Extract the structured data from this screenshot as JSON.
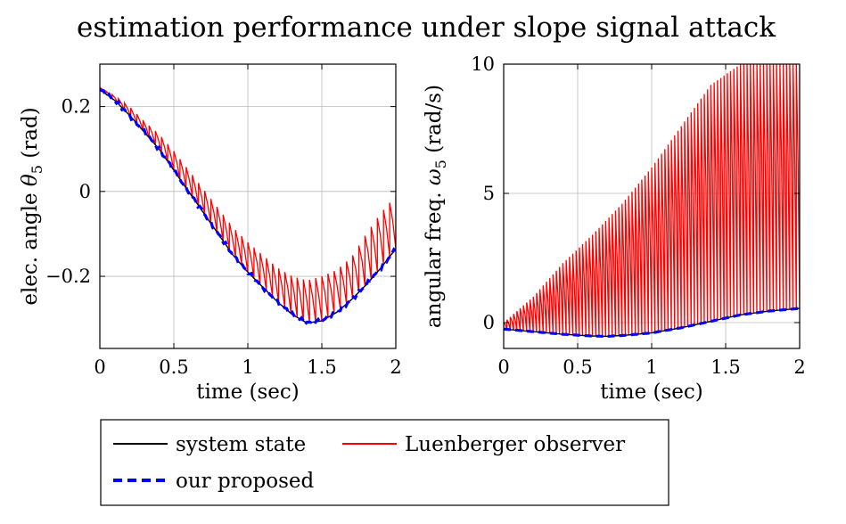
{
  "figure": {
    "title": "estimation performance under slope signal attack"
  },
  "legend": {
    "items": [
      {
        "label": "system state",
        "color": "#000000",
        "dash": "solid"
      },
      {
        "label": "Luenberger observer",
        "color": "#ff0000",
        "dash": "solid"
      },
      {
        "label": "our proposed",
        "color": "#0000ff",
        "dash": "dashed"
      }
    ]
  },
  "chart_data": [
    {
      "type": "line",
      "xlabel": "time (sec)",
      "ylabel_text": "elec. angle ",
      "ylabel_symbol": "θ",
      "ylabel_sub": "5",
      "ylabel_unit": " (rad)",
      "xlim": [
        0,
        2
      ],
      "ylim": [
        -0.37,
        0.3
      ],
      "xticks": [
        0,
        0.5,
        1,
        1.5,
        2
      ],
      "xtick_labels": [
        "0",
        "0.5",
        "1",
        "1.5",
        "2"
      ],
      "yticks": [
        -0.2,
        0,
        0.2
      ],
      "ytick_labels": [
        "−0.2",
        "0",
        "0.2"
      ],
      "grid": true,
      "series": [
        {
          "name": "system state",
          "color": "#000000",
          "x": [
            0,
            0.1,
            0.2,
            0.3,
            0.4,
            0.5,
            0.6,
            0.7,
            0.8,
            0.9,
            1.0,
            1.1,
            1.2,
            1.3,
            1.4,
            1.5,
            1.6,
            1.7,
            1.8,
            1.9,
            2.0
          ],
          "y": [
            0.24,
            0.215,
            0.18,
            0.14,
            0.1,
            0.05,
            0.0,
            -0.05,
            -0.1,
            -0.15,
            -0.19,
            -0.225,
            -0.26,
            -0.29,
            -0.31,
            -0.305,
            -0.285,
            -0.255,
            -0.22,
            -0.18,
            -0.135
          ]
        },
        {
          "name": "Luenberger observer",
          "color": "#ff0000",
          "x": [
            0,
            0.1,
            0.2,
            0.3,
            0.4,
            0.5,
            0.6,
            0.7,
            0.8,
            0.9,
            1.0,
            1.1,
            1.2,
            1.3,
            1.4,
            1.5,
            1.6,
            1.7,
            1.8,
            1.9,
            2.0
          ],
          "lower": [
            0.24,
            0.215,
            0.18,
            0.14,
            0.1,
            0.05,
            0.0,
            -0.05,
            -0.1,
            -0.15,
            -0.19,
            -0.225,
            -0.26,
            -0.29,
            -0.31,
            -0.305,
            -0.285,
            -0.255,
            -0.22,
            -0.18,
            -0.135
          ],
          "upper": [
            0.245,
            0.225,
            0.2,
            0.165,
            0.135,
            0.095,
            0.05,
            0.005,
            -0.04,
            -0.085,
            -0.12,
            -0.15,
            -0.18,
            -0.2,
            -0.21,
            -0.2,
            -0.185,
            -0.155,
            -0.1,
            -0.05,
            -0.01
          ]
        },
        {
          "name": "our proposed",
          "color": "#0000ff",
          "x": [
            0,
            0.1,
            0.2,
            0.3,
            0.4,
            0.5,
            0.6,
            0.7,
            0.8,
            0.9,
            1.0,
            1.1,
            1.2,
            1.3,
            1.4,
            1.5,
            1.6,
            1.7,
            1.8,
            1.9,
            2.0
          ],
          "y": [
            0.24,
            0.215,
            0.18,
            0.14,
            0.1,
            0.05,
            0.0,
            -0.05,
            -0.1,
            -0.15,
            -0.19,
            -0.225,
            -0.26,
            -0.29,
            -0.31,
            -0.305,
            -0.285,
            -0.255,
            -0.22,
            -0.18,
            -0.135
          ]
        }
      ]
    },
    {
      "type": "line",
      "xlabel": "time (sec)",
      "ylabel_text": "angular freq. ",
      "ylabel_symbol": "ω",
      "ylabel_sub": "5",
      "ylabel_unit": " (rad/s)",
      "xlim": [
        0,
        2
      ],
      "ylim": [
        -1,
        10
      ],
      "xticks": [
        0,
        0.5,
        1,
        1.5,
        2
      ],
      "xtick_labels": [
        "0",
        "0.5",
        "1",
        "1.5",
        "2"
      ],
      "yticks": [
        0,
        5,
        10
      ],
      "ytick_labels": [
        "0",
        "5",
        "10"
      ],
      "grid": true,
      "series": [
        {
          "name": "system state",
          "color": "#000000",
          "x": [
            0,
            0.2,
            0.4,
            0.6,
            0.7,
            0.8,
            1.0,
            1.2,
            1.4,
            1.6,
            1.8,
            2.0
          ],
          "y": [
            -0.25,
            -0.35,
            -0.45,
            -0.52,
            -0.53,
            -0.5,
            -0.4,
            -0.2,
            0.05,
            0.3,
            0.45,
            0.55
          ]
        },
        {
          "name": "Luenberger observer",
          "color": "#ff0000",
          "x": [
            0,
            0.2,
            0.4,
            0.6,
            0.7,
            0.8,
            1.0,
            1.2,
            1.4,
            1.6,
            1.8,
            2.0
          ],
          "lower": [
            -0.25,
            -0.35,
            -0.45,
            -0.52,
            -0.53,
            -0.5,
            -0.4,
            -0.2,
            0.05,
            0.3,
            0.45,
            0.55
          ],
          "upper": [
            0.0,
            1.0,
            2.3,
            3.4,
            4.0,
            4.6,
            6.0,
            7.6,
            9.2,
            10.0,
            10.0,
            10.0
          ]
        },
        {
          "name": "our proposed",
          "color": "#0000ff",
          "x": [
            0,
            0.2,
            0.4,
            0.6,
            0.7,
            0.8,
            1.0,
            1.2,
            1.4,
            1.6,
            1.8,
            2.0
          ],
          "y": [
            -0.25,
            -0.35,
            -0.45,
            -0.52,
            -0.53,
            -0.5,
            -0.4,
            -0.2,
            0.05,
            0.3,
            0.45,
            0.55
          ]
        }
      ]
    }
  ]
}
